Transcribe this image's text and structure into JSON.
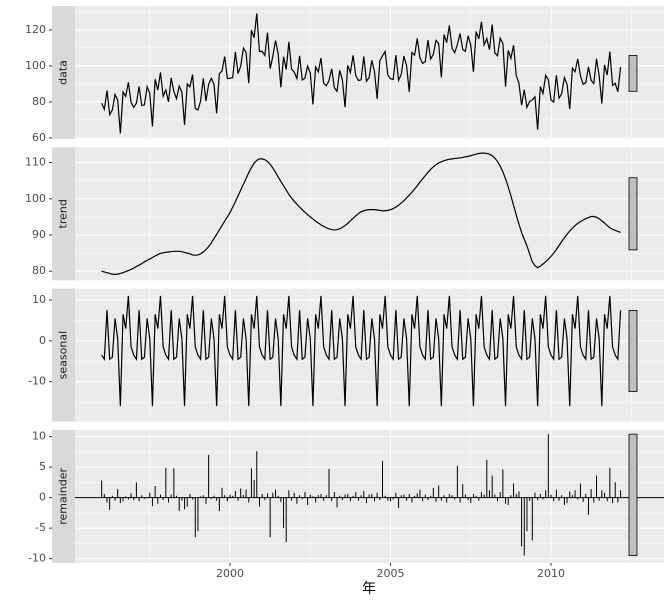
{
  "chart_data": {
    "xlabel": "年",
    "xlim": [
      1995.17,
      2013.52
    ],
    "xticks": [
      2000,
      2005,
      2010
    ],
    "grid": true,
    "x": [
      1996,
      1996.083,
      1996.167,
      1996.25,
      1996.333,
      1996.417,
      1996.5,
      1996.583,
      1996.667,
      1996.75,
      1996.833,
      1996.917,
      1997,
      1997.083,
      1997.167,
      1997.25,
      1997.333,
      1997.417,
      1997.5,
      1997.583,
      1997.667,
      1997.75,
      1997.833,
      1997.917,
      1998,
      1998.083,
      1998.167,
      1998.25,
      1998.333,
      1998.417,
      1998.5,
      1998.583,
      1998.667,
      1998.75,
      1998.833,
      1998.917,
      1999,
      1999.083,
      1999.167,
      1999.25,
      1999.333,
      1999.417,
      1999.5,
      1999.583,
      1999.667,
      1999.75,
      1999.833,
      1999.917,
      2000,
      2000.083,
      2000.167,
      2000.25,
      2000.333,
      2000.417,
      2000.5,
      2000.583,
      2000.667,
      2000.75,
      2000.833,
      2000.917,
      2001,
      2001.083,
      2001.167,
      2001.25,
      2001.333,
      2001.417,
      2001.5,
      2001.583,
      2001.667,
      2001.75,
      2001.833,
      2001.917,
      2002,
      2002.083,
      2002.167,
      2002.25,
      2002.333,
      2002.417,
      2002.5,
      2002.583,
      2002.667,
      2002.75,
      2002.833,
      2002.917,
      2003,
      2003.083,
      2003.167,
      2003.25,
      2003.333,
      2003.417,
      2003.5,
      2003.583,
      2003.667,
      2003.75,
      2003.833,
      2003.917,
      2004,
      2004.083,
      2004.167,
      2004.25,
      2004.333,
      2004.417,
      2004.5,
      2004.583,
      2004.667,
      2004.75,
      2004.833,
      2004.917,
      2005,
      2005.083,
      2005.167,
      2005.25,
      2005.333,
      2005.417,
      2005.5,
      2005.583,
      2005.667,
      2005.75,
      2005.833,
      2005.917,
      2006,
      2006.083,
      2006.167,
      2006.25,
      2006.333,
      2006.417,
      2006.5,
      2006.583,
      2006.667,
      2006.75,
      2006.833,
      2006.917,
      2007,
      2007.083,
      2007.167,
      2007.25,
      2007.333,
      2007.417,
      2007.5,
      2007.583,
      2007.667,
      2007.75,
      2007.833,
      2007.917,
      2008,
      2008.083,
      2008.167,
      2008.25,
      2008.333,
      2008.417,
      2008.5,
      2008.583,
      2008.667,
      2008.75,
      2008.833,
      2008.917,
      2009,
      2009.083,
      2009.167,
      2009.25,
      2009.333,
      2009.417,
      2009.5,
      2009.583,
      2009.667,
      2009.75,
      2009.833,
      2009.917,
      2010,
      2010.083,
      2010.167,
      2010.25,
      2010.333,
      2010.417,
      2010.5,
      2010.583,
      2010.667,
      2010.75,
      2010.833,
      2010.917,
      2011,
      2011.083,
      2011.167,
      2011.25,
      2011.333,
      2011.417,
      2011.5,
      2011.583,
      2011.667,
      2011.75,
      2011.833,
      2011.917,
      2012,
      2012.083,
      2012.167
    ],
    "panels": [
      {
        "type": "line",
        "label": "data",
        "color": "#000000",
        "ylim": [
          59.4,
          133.3
        ],
        "yticks": [
          60,
          80,
          100,
          120
        ],
        "values": [
          79.3,
          75.9,
          86.3,
          72.9,
          75.5,
          84.1,
          81.1,
          62.5,
          85.5,
          83.1,
          90.9,
          79.7,
          77.0,
          79.3,
          88.6,
          78.0,
          78.4,
          88.4,
          84.7,
          66.4,
          92.6,
          86.6,
          96.4,
          83.2,
          86.6,
          80.0,
          93.4,
          85.8,
          81.8,
          88.8,
          85.4,
          67.3,
          90.0,
          88.4,
          95.2,
          76.4,
          75.5,
          80.5,
          93.2,
          80.5,
          89.8,
          93.1,
          89.8,
          73.7,
          95.7,
          97.2,
          105.2,
          92.9,
          93.2,
          93.5,
          107.8,
          95.8,
          99.9,
          109.9,
          107.4,
          90.4,
          119.9,
          115.7,
          129.2,
          108.0,
          108.1,
          105.9,
          118.5,
          98.5,
          105.3,
          114.1,
          106.8,
          88.1,
          105.1,
          98.1,
          113.4,
          98.2,
          96.6,
          93.0,
          105.6,
          92.2,
          93.2,
          99.9,
          96.0,
          78.6,
          99.5,
          96.7,
          104.4,
          90.4,
          88.9,
          91.9,
          98.4,
          87.8,
          85.9,
          97.5,
          92.2,
          77.1,
          100.3,
          96.3,
          105.9,
          94.7,
          91.9,
          92.3,
          105.3,
          91.5,
          93.5,
          103.1,
          96.9,
          81.7,
          102.9,
          105.7,
          108.0,
          94.8,
          92.9,
          92.5,
          106.0,
          92.0,
          95.2,
          105.5,
          100.2,
          85.6,
          107.5,
          106.0,
          115.3,
          104.4,
          101.4,
          102.4,
          114.4,
          103.9,
          106.4,
          114.2,
          112.4,
          93.7,
          117.4,
          112.9,
          122.5,
          109.9,
          107.3,
          111.9,
          118.0,
          109.1,
          108.1,
          116.8,
          111.5,
          96.7,
          119.1,
          115.0,
          124.5,
          111.6,
          115.2,
          109.0,
          123.0,
          107.2,
          105.7,
          115.4,
          112.5,
          88.5,
          108.6,
          104.2,
          111.5,
          94.6,
          90.5,
          78.2,
          86.8,
          77.0,
          80.3,
          81.1,
          82.8,
          64.6,
          88.5,
          84.7,
          94.8,
          92.2,
          81.1,
          79.9,
          94.8,
          82.1,
          84.6,
          93.5,
          89.8,
          76.1,
          98.8,
          96.8,
          103.9,
          94.5,
          89.9,
          90.6,
          99.5,
          92.0,
          90.3,
          104.0,
          94.5,
          79.1,
          100.6,
          95.0,
          107.9,
          89.2,
          90.3,
          85.7,
          99.4
        ]
      },
      {
        "type": "line",
        "label": "trend",
        "color": "#000000",
        "ylim": [
          77.5,
          114.2
        ],
        "yticks": [
          80,
          90,
          100,
          110
        ],
        "values": [
          80.0,
          79.8,
          79.6,
          79.4,
          79.2,
          79.1,
          79.2,
          79.4,
          79.6,
          79.9,
          80.2,
          80.5,
          80.9,
          81.3,
          81.7,
          82.1,
          82.6,
          83.0,
          83.4,
          83.8,
          84.2,
          84.6,
          84.9,
          85.1,
          85.2,
          85.3,
          85.4,
          85.5,
          85.5,
          85.5,
          85.4,
          85.2,
          85.0,
          84.8,
          84.5,
          84.4,
          84.5,
          84.8,
          85.3,
          86.0,
          86.8,
          87.8,
          89.0,
          90.2,
          91.4,
          92.6,
          93.8,
          95.0,
          96.2,
          97.7,
          99.2,
          100.8,
          102.4,
          104.0,
          105.6,
          107.2,
          108.6,
          109.8,
          110.6,
          111.0,
          111.0,
          110.8,
          110.3,
          109.5,
          108.5,
          107.3,
          106.0,
          104.8,
          103.6,
          102.4,
          101.2,
          100.2,
          99.3,
          98.5,
          97.7,
          97.0,
          96.3,
          95.6,
          95.0,
          94.4,
          93.8,
          93.3,
          92.8,
          92.4,
          92.0,
          91.7,
          91.5,
          91.4,
          91.5,
          91.7,
          92.1,
          92.6,
          93.2,
          93.9,
          94.6,
          95.3,
          95.9,
          96.4,
          96.7,
          96.9,
          97.0,
          97.0,
          97.0,
          96.9,
          96.8,
          96.7,
          96.7,
          96.8,
          97.0,
          97.3,
          97.7,
          98.2,
          98.8,
          99.5,
          100.2,
          101.0,
          101.8,
          102.7,
          103.6,
          104.6,
          105.5,
          106.4,
          107.3,
          108.1,
          108.8,
          109.4,
          109.9,
          110.2,
          110.5,
          110.7,
          110.9,
          111.0,
          111.1,
          111.2,
          111.3,
          111.4,
          111.6,
          111.7,
          111.9,
          112.1,
          112.3,
          112.5,
          112.6,
          112.6,
          112.5,
          112.3,
          111.9,
          111.2,
          110.3,
          109.0,
          107.4,
          105.5,
          103.3,
          100.8,
          98.2,
          95.5,
          93.0,
          90.7,
          88.8,
          87.0,
          84.8,
          82.6,
          81.5,
          81.0,
          81.4,
          82.0,
          82.6,
          83.3,
          84.1,
          85.0,
          86.0,
          87.1,
          88.2,
          89.2,
          90.2,
          91.1,
          91.9,
          92.6,
          93.2,
          93.7,
          94.1,
          94.5,
          94.8,
          95.1,
          95.1,
          94.9,
          94.5,
          93.9,
          93.3,
          92.6,
          92.0,
          91.6,
          91.3,
          91.0,
          90.7
        ]
      },
      {
        "type": "line",
        "label": "seasonal",
        "color": "#000000",
        "ylim": [
          -19.8,
          12.8
        ],
        "yticks": [
          -10,
          0,
          10
        ],
        "values": [
          -3.5,
          -4.5,
          7.5,
          -4.5,
          -4,
          5.5,
          0.5,
          -16,
          6.5,
          3,
          11,
          -1.5,
          -3.5,
          -4.5,
          7.5,
          -4.5,
          -4,
          5.5,
          0.5,
          -16,
          6.5,
          3,
          11,
          -1.5,
          -3.5,
          -4.5,
          7.5,
          -4.5,
          -4,
          5.5,
          0.5,
          -16,
          6.5,
          3,
          11,
          -1.5,
          -3.5,
          -4.5,
          7.5,
          -4.5,
          -4,
          5.5,
          0.5,
          -16,
          6.5,
          3,
          11,
          -1.5,
          -3.5,
          -4.5,
          7.5,
          -4.5,
          -4,
          5.5,
          0.5,
          -16,
          6.5,
          3,
          11,
          -1.5,
          -3.5,
          -4.5,
          7.5,
          -4.5,
          -4,
          5.5,
          0.5,
          -16,
          6.5,
          3,
          11,
          -1.5,
          -3.5,
          -4.5,
          7.5,
          -4.5,
          -4,
          5.5,
          0.5,
          -16,
          6.5,
          3,
          11,
          -1.5,
          -3.5,
          -4.5,
          7.5,
          -4.5,
          -4,
          5.5,
          0.5,
          -16,
          6.5,
          3,
          11,
          -1.5,
          -3.5,
          -4.5,
          7.5,
          -4.5,
          -4,
          5.5,
          0.5,
          -16,
          6.5,
          3,
          11,
          -1.5,
          -3.5,
          -4.5,
          7.5,
          -4.5,
          -4,
          5.5,
          0.5,
          -16,
          6.5,
          3,
          11,
          -1.5,
          -3.5,
          -4.5,
          7.5,
          -4.5,
          -4,
          5.5,
          0.5,
          -16,
          6.5,
          3,
          11,
          -1.5,
          -3.5,
          -4.5,
          7.5,
          -4.5,
          -4,
          5.5,
          0.5,
          -16,
          6.5,
          3,
          11,
          -1.5,
          -3.5,
          -4.5,
          7.5,
          -4.5,
          -4,
          5.5,
          0.5,
          -16,
          6.5,
          3,
          11,
          -1.5,
          -3.5,
          -4.5,
          7.5,
          -4.5,
          -4,
          5.5,
          0.5,
          -16,
          6.5,
          3,
          11,
          -1.5,
          -3.5,
          -4.5,
          7.5,
          -4.5,
          -4,
          5.5,
          0.5,
          -16,
          6.5,
          3,
          11,
          -1.5,
          -3.5,
          -4.5,
          7.5,
          -4.5,
          -4,
          5.5,
          0.5,
          -16,
          6.5,
          3,
          11,
          -1.5,
          -3.5,
          -4.5,
          7.5
        ]
      },
      {
        "type": "bar",
        "label": "remainder",
        "color": "#000000",
        "ylim": [
          -10.7,
          11.1
        ],
        "yticks": [
          -10,
          -5,
          0,
          5,
          10
        ],
        "values": [
          2.8,
          0.6,
          -0.8,
          -2.0,
          0.3,
          -0.5,
          1.4,
          -0.9,
          -0.6,
          0.2,
          -0.3,
          0.7,
          -0.4,
          2.5,
          -0.6,
          0.4,
          -0.2,
          -0.1,
          0.8,
          -1.4,
          1.9,
          -1.0,
          0.5,
          -0.4,
          4.9,
          -0.8,
          0.5,
          4.8,
          0.3,
          -2.2,
          -0.5,
          -1.9,
          -1.5,
          0.6,
          -0.3,
          -6.5,
          -5.5,
          0.2,
          0.4,
          -1.0,
          7.0,
          -0.2,
          0.3,
          -0.5,
          -2.2,
          1.6,
          0.4,
          -0.6,
          0.5,
          0.3,
          1.1,
          -0.5,
          1.5,
          0.4,
          1.3,
          -0.8,
          4.8,
          2.9,
          7.6,
          -1.5,
          0.6,
          -0.4,
          0.7,
          -6.5,
          0.8,
          1.3,
          0.3,
          -0.7,
          -5.0,
          -7.3,
          1.2,
          -0.5,
          0.8,
          -1.0,
          0.4,
          -0.3,
          0.9,
          -1.2,
          0.5,
          0.2,
          -0.8,
          0.4,
          0.6,
          -0.5,
          0.4,
          4.7,
          -0.6,
          0.9,
          -1.6,
          0.3,
          -0.4,
          0.5,
          0.6,
          -0.6,
          0.3,
          0.9,
          -0.5,
          0.4,
          1.1,
          -0.9,
          0.5,
          0.6,
          -0.6,
          0.8,
          -0.4,
          6.0,
          0.3,
          -0.5,
          -0.6,
          -0.3,
          0.8,
          -1.7,
          0.4,
          0.5,
          -0.5,
          0.6,
          -0.8,
          0.3,
          0.7,
          1.3,
          -0.6,
          0.5,
          -0.4,
          0.3,
          1.6,
          -0.7,
          2.0,
          -0.5,
          0.4,
          -0.8,
          0.6,
          0.4,
          -0.3,
          5.2,
          -0.8,
          2.2,
          0.5,
          -0.4,
          -0.9,
          0.6,
          0.3,
          -0.5,
          0.9,
          0.5,
          6.2,
          1.2,
          3.6,
          0.5,
          -0.6,
          0.9,
          4.6,
          -1.0,
          -1.2,
          0.4,
          2.3,
          0.6,
          1.0,
          -8.0,
          -9.5,
          -5.5,
          -0.5,
          -7.0,
          0.8,
          -0.4,
          0.6,
          -0.3,
          1.2,
          10.4,
          0.5,
          -0.6,
          1.3,
          -0.5,
          0.4,
          -1.2,
          -0.9,
          1.0,
          0.4,
          1.2,
          -0.3,
          2.3,
          -0.7,
          0.6,
          -2.8,
          1.4,
          -0.8,
          3.6,
          -0.5,
          1.2,
          0.8,
          -0.6,
          4.9,
          -0.9,
          2.5,
          -0.8,
          1.2
        ]
      }
    ]
  }
}
